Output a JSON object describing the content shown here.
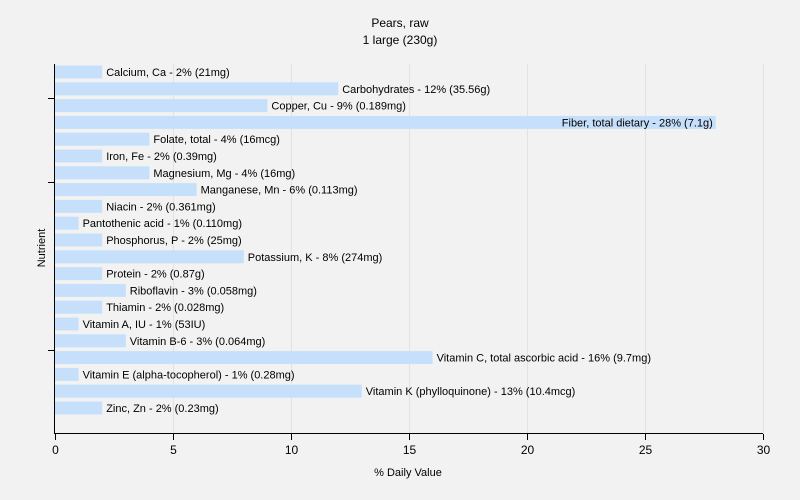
{
  "chart_data": {
    "type": "bar",
    "orientation": "horizontal",
    "title": "Pears, raw",
    "subtitle": "1 large (230g)",
    "xlabel": "% Daily Value",
    "ylabel": "Nutrient",
    "xlim": [
      0,
      30
    ],
    "xticks": [
      "0",
      "5",
      "10",
      "15",
      "20",
      "25",
      "30"
    ],
    "grid": true,
    "bar_color": "#c6e0fb",
    "bars": [
      {
        "label": "Calcium, Ca - 2% (21mg)",
        "value": 2
      },
      {
        "label": "Carbohydrates - 12% (35.56g)",
        "value": 12
      },
      {
        "label": "Copper, Cu - 9% (0.189mg)",
        "value": 9
      },
      {
        "label": "Fiber, total dietary - 28% (7.1g)",
        "value": 28
      },
      {
        "label": "Folate, total - 4% (16mcg)",
        "value": 4
      },
      {
        "label": "Iron, Fe - 2% (0.39mg)",
        "value": 2
      },
      {
        "label": "Magnesium, Mg - 4% (16mg)",
        "value": 4
      },
      {
        "label": "Manganese, Mn - 6% (0.113mg)",
        "value": 6
      },
      {
        "label": "Niacin - 2% (0.361mg)",
        "value": 2
      },
      {
        "label": "Pantothenic acid - 1% (0.110mg)",
        "value": 1
      },
      {
        "label": "Phosphorus, P - 2% (25mg)",
        "value": 2
      },
      {
        "label": "Potassium, K - 8% (274mg)",
        "value": 8
      },
      {
        "label": "Protein - 2% (0.87g)",
        "value": 2
      },
      {
        "label": "Riboflavin - 3% (0.058mg)",
        "value": 3
      },
      {
        "label": "Thiamin - 2% (0.028mg)",
        "value": 2
      },
      {
        "label": "Vitamin A, IU - 1% (53IU)",
        "value": 1
      },
      {
        "label": "Vitamin B-6 - 3% (0.064mg)",
        "value": 3
      },
      {
        "label": "Vitamin C, total ascorbic acid - 16% (9.7mg)",
        "value": 16
      },
      {
        "label": "Vitamin E (alpha-tocopherol) - 1% (0.28mg)",
        "value": 1
      },
      {
        "label": "Vitamin K (phylloquinone) - 13% (10.4mcg)",
        "value": 13
      },
      {
        "label": "Zinc, Zn - 2% (0.23mg)",
        "value": 2
      }
    ]
  }
}
